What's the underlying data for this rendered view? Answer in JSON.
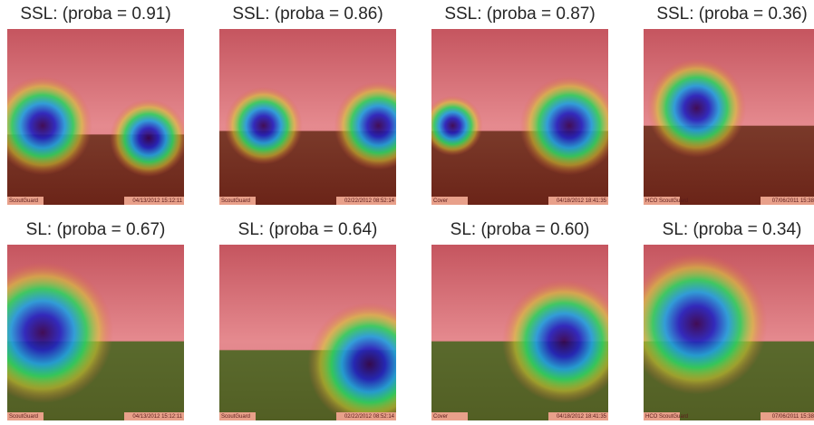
{
  "panels": [
    {
      "title": "SSL: (proba = 0.91)",
      "stamp_left": "ScoutGuard",
      "stamp_right": "04/13/2012 15:12:11"
    },
    {
      "title": "SSL: (proba = 0.86)",
      "stamp_left": "ScoutGuard",
      "stamp_right": "02/22/2012 08:52:14"
    },
    {
      "title": "SSL: (proba = 0.87)",
      "stamp_left": "Cover",
      "stamp_right": "04/18/2012 18:41:35"
    },
    {
      "title": "SSL: (proba = 0.36)",
      "stamp_left": "HCO ScoutGuard",
      "stamp_right": "07/06/2011 15:38:2"
    },
    {
      "title": "SL: (proba = 0.67)",
      "stamp_left": "ScoutGuard",
      "stamp_right": "04/13/2012 15:12:11"
    },
    {
      "title": "SL: (proba = 0.64)",
      "stamp_left": "ScoutGuard",
      "stamp_right": "02/22/2012 08:52:14"
    },
    {
      "title": "SL: (proba = 0.60)",
      "stamp_left": "Cover",
      "stamp_right": "04/18/2012 18:41:35"
    },
    {
      "title": "SL: (proba = 0.34)",
      "stamp_left": "HCO ScoutGuard",
      "stamp_right": "07/06/2011 15:38:2"
    }
  ]
}
